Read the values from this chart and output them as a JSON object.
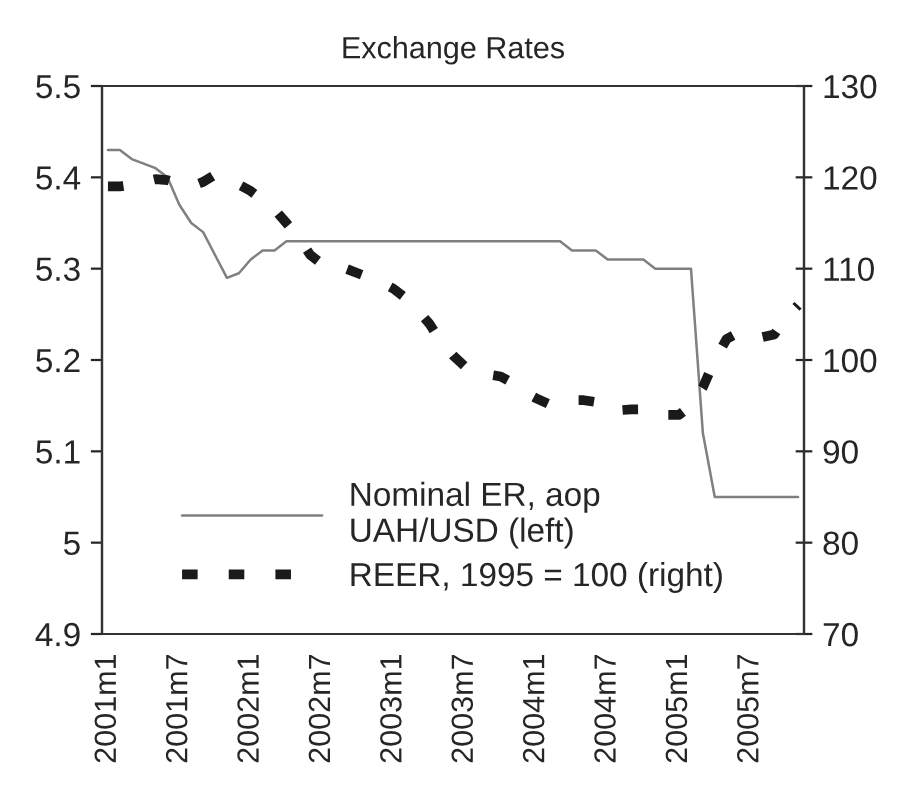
{
  "chart_data": {
    "type": "line",
    "title": "Exchange Rates",
    "categories": [
      "2001m1",
      null,
      null,
      null,
      null,
      null,
      "2001m7",
      null,
      null,
      null,
      null,
      null,
      "2002m1",
      null,
      null,
      null,
      null,
      null,
      "2002m7",
      null,
      null,
      null,
      null,
      null,
      "2003m1",
      null,
      null,
      null,
      null,
      null,
      "2003m7",
      null,
      null,
      null,
      null,
      null,
      "2004m1",
      null,
      null,
      null,
      null,
      null,
      "2004m7",
      null,
      null,
      null,
      null,
      null,
      "2005m1",
      null,
      null,
      null,
      null,
      null,
      "2005m7",
      null,
      null,
      null,
      null
    ],
    "series": [
      {
        "name": "Nominal ER, aop\nUAH/USD (left)",
        "color": "#808080",
        "line_style": "solid",
        "values": [
          5.43,
          5.43,
          5.42,
          5.415,
          5.41,
          5.4,
          5.37,
          5.35,
          5.34,
          5.315,
          5.29,
          5.295,
          5.31,
          5.32,
          5.32,
          5.33,
          5.33,
          5.33,
          5.33,
          5.33,
          5.33,
          5.33,
          5.33,
          5.33,
          5.33,
          5.33,
          5.33,
          5.33,
          5.33,
          5.33,
          5.33,
          5.33,
          5.33,
          5.33,
          5.33,
          5.33,
          5.33,
          5.33,
          5.33,
          5.32,
          5.32,
          5.32,
          5.31,
          5.31,
          5.31,
          5.31,
          5.3,
          5.3,
          5.3,
          5.3,
          5.12,
          5.05,
          5.05,
          5.05,
          5.05,
          5.05,
          5.05,
          5.05,
          5.05
        ]
      },
      {
        "name": "REER, 1995 = 100 (right)",
        "color": "#1a1a1a",
        "axis": "y2",
        "line_style": "dashed",
        "values": [
          119,
          119,
          119.2,
          119.5,
          119.8,
          119.7,
          119.3,
          119,
          119.5,
          120.3,
          119.8,
          119.2,
          118.5,
          117.5,
          116.5,
          115,
          113.5,
          111.5,
          110.5,
          110,
          110,
          109.5,
          109,
          108.5,
          107.8,
          106.8,
          105.5,
          104,
          102,
          100.5,
          99.3,
          98.6,
          98.4,
          98.2,
          97.5,
          96.5,
          95.8,
          95.2,
          95.5,
          95.6,
          95.6,
          95.4,
          94.5,
          94.5,
          94.6,
          94.6,
          94.5,
          94,
          94,
          95,
          97,
          100,
          102.3,
          103,
          103,
          102.5,
          102.8,
          104.6,
          106
        ]
      }
    ],
    "ylim": [
      4.9,
      5.5
    ],
    "yticks": [
      {
        "value": 4.9,
        "label": "4.9"
      },
      5,
      {
        "value": 5.1,
        "label": "5.1"
      },
      {
        "value": 5.2,
        "label": "5.2"
      },
      {
        "value": 5.3,
        "label": "5.3"
      },
      {
        "value": 5.4,
        "label": "5.4"
      },
      {
        "value": 5.5,
        "label": "5.5"
      }
    ],
    "y2lim": [
      70,
      130
    ],
    "y2ticks": [
      70,
      80,
      90,
      100,
      110,
      120,
      130
    ],
    "grid": false,
    "legend": "bottom"
  }
}
